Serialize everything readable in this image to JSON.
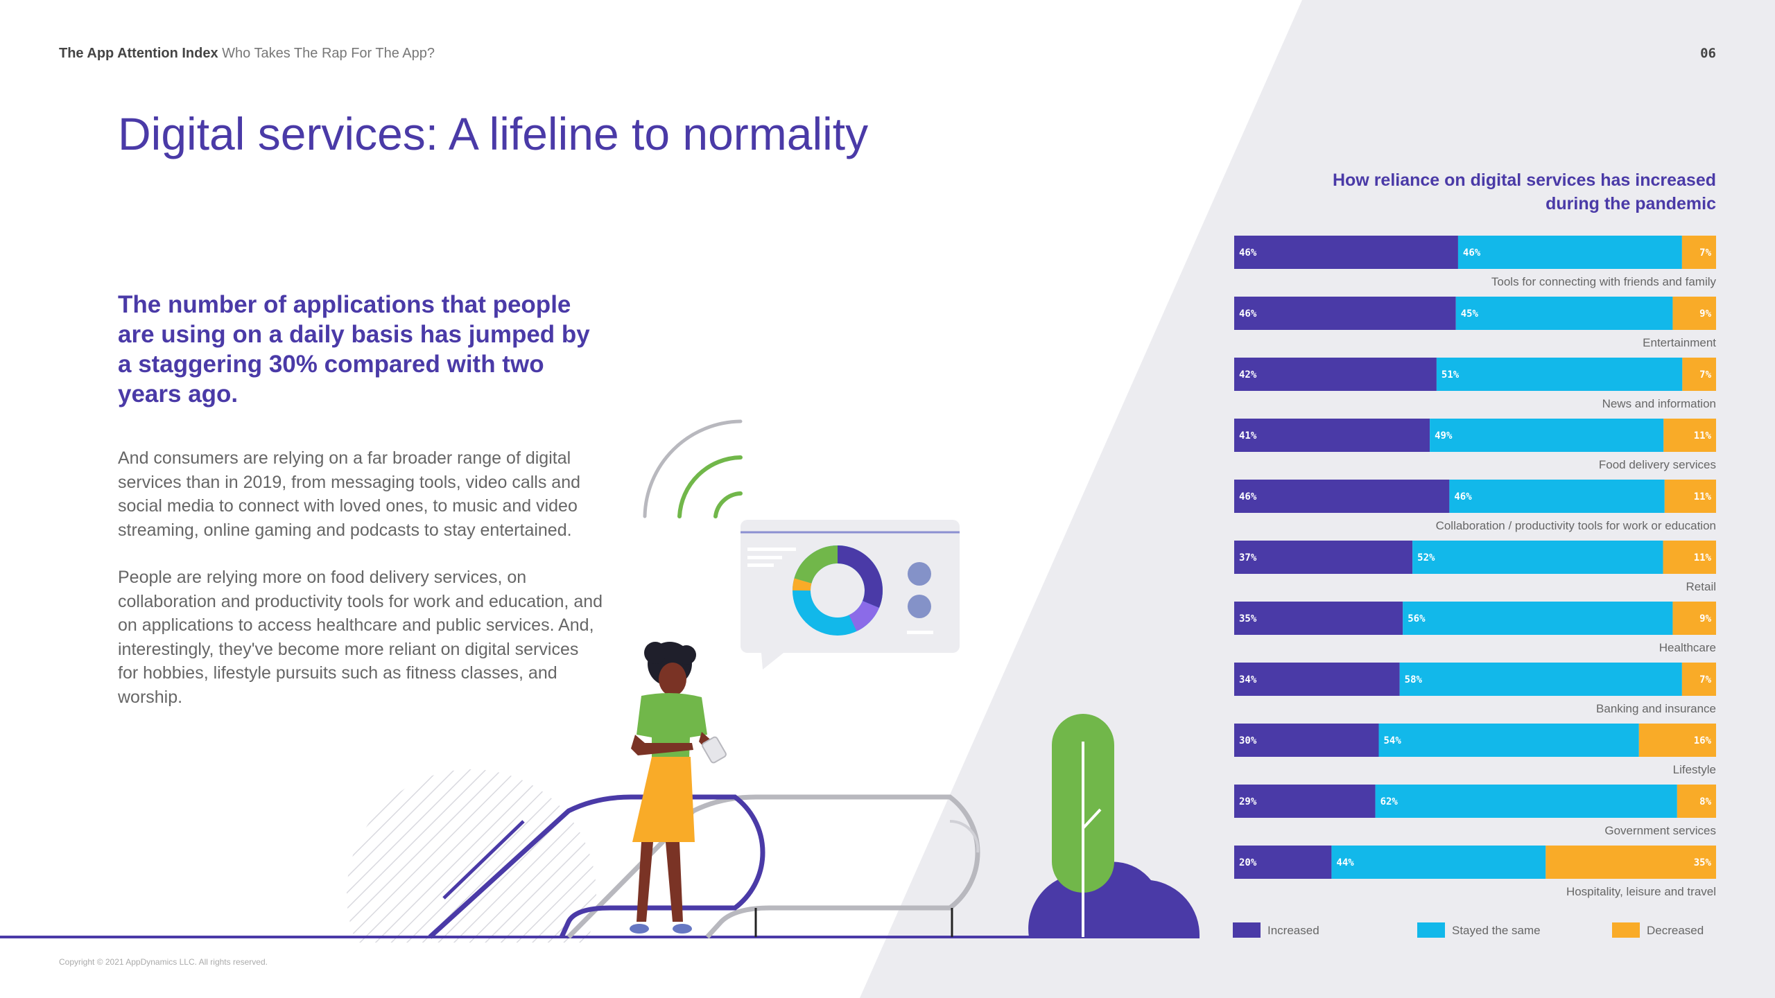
{
  "header": {
    "brand": "The App Attention Index",
    "subtitle": "Who Takes The Rap For The App?",
    "page_number": "06"
  },
  "main": {
    "title": "Digital services: A lifeline to normality",
    "lead": "The number of applications that people are using on a daily basis has jumped by a staggering 30% compared with two years ago.",
    "paragraph1": "And consumers are relying on a far broader range of digital services than in 2019, from messaging tools, video calls and social media to connect with loved ones, to music and video streaming, online gaming and podcasts to stay entertained.",
    "paragraph2": "People are relying more on food delivery services, on collaboration and productivity tools for work and education, and on applications to access healthcare and public services. And, interestingly, they've become more reliant on digital services for hobbies, lifestyle pursuits such as fitness classes, and worship."
  },
  "footer": {
    "copyright": "Copyright © 2021 AppDynamics LLC. All rights reserved."
  },
  "colors": {
    "increased": "#4a3aa7",
    "same": "#12b8ea",
    "decreased": "#f9ab28",
    "background_panel": "#ececf0",
    "accent_green": "#71b74a"
  },
  "chart_data": {
    "type": "bar",
    "orientation": "horizontal",
    "stacked": true,
    "title": "How reliance on digital services has increased during the pandemic",
    "categories": [
      "Tools for connecting with friends and family",
      "Entertainment",
      "News and information",
      "Food delivery services",
      "Collaboration / productivity tools for work or education",
      "Retail",
      "Healthcare",
      "Banking and insurance",
      "Lifestyle",
      "Government services",
      "Hospitality, leisure and travel"
    ],
    "series": [
      {
        "name": "Increased",
        "color": "#4a3aa7",
        "values": [
          46,
          46,
          42,
          41,
          46,
          37,
          35,
          34,
          30,
          29,
          20
        ]
      },
      {
        "name": "Stayed the same",
        "color": "#12b8ea",
        "values": [
          46,
          45,
          51,
          49,
          46,
          52,
          56,
          58,
          54,
          62,
          44
        ]
      },
      {
        "name": "Decreased",
        "color": "#f9ab28",
        "values": [
          7,
          9,
          7,
          11,
          11,
          11,
          9,
          7,
          16,
          8,
          35
        ]
      }
    ],
    "value_suffix": "%",
    "legend_position": "bottom",
    "grid": false
  }
}
